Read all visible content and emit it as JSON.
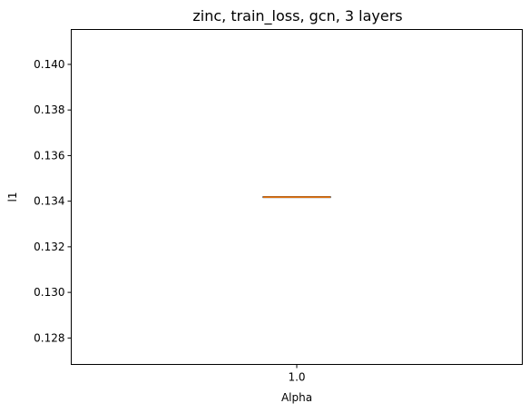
{
  "chart_data": {
    "type": "box",
    "title": "zinc, train_loss, gcn, 3 layers",
    "xlabel": "Alpha",
    "ylabel": "l1",
    "categories": [
      "1.0"
    ],
    "series": [
      {
        "values": [
          {
            "category": "1.0",
            "min": 0.13418,
            "q1": 0.13418,
            "median": 0.13418,
            "q3": 0.13418,
            "max": 0.13418
          }
        ]
      }
    ],
    "ylim": [
      0.12684,
      0.14153
    ],
    "yticks": [
      "0.128",
      "0.130",
      "0.132",
      "0.134",
      "0.136",
      "0.138",
      "0.140"
    ],
    "grid": false,
    "box_color": "#000000",
    "median_color": "#ff7f0e"
  }
}
